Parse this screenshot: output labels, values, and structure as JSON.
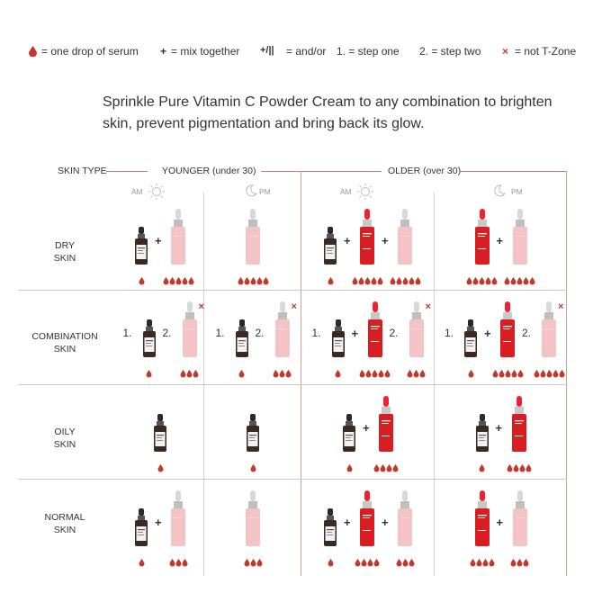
{
  "legend": {
    "drop": "= one drop of serum",
    "plus_symbol": "+",
    "plus": "= mix together",
    "andor_symbol": "+/||",
    "andor": "= and/or",
    "step1": "1. = step one",
    "step2": "2. = step two",
    "x_symbol": "×",
    "xlabel": "= not T-Zone"
  },
  "intro": "Sprinkle Pure  Vitamin C  Powder Cream to any combination to brighten skin, prevent pigmentation and bring back its glow.",
  "header": {
    "skin_type": "SKIN TYPE",
    "younger": "YOUNGER (under 30)",
    "older": "OLDER (over 30)",
    "am": "AM",
    "pm": "PM"
  },
  "rows": [
    {
      "line1": "DRY",
      "line2": "SKIN"
    },
    {
      "line1": "COMBINATION",
      "line2": "SKIN"
    },
    {
      "line1": "OILY",
      "line2": "SKIN"
    },
    {
      "line1": "NORMAL",
      "line2": "SKIN"
    }
  ],
  "steps": {
    "one": "1.",
    "two": "2."
  },
  "colors": {
    "accent": "#c0392b",
    "drop": "#c0392b",
    "pink_bottle": "#f3c3c6",
    "red_bottle": "#d81e22",
    "dark_bottle": "#3b2a22",
    "line": "#b6827c"
  },
  "cells": [
    [
      {
        "items": [
          {
            "kind": "dark",
            "drops": 1
          },
          {
            "op": "+"
          },
          {
            "kind": "pink",
            "drops": 5
          }
        ]
      },
      {
        "items": [
          {
            "kind": "pink",
            "drops": 5
          }
        ]
      },
      {
        "items": [
          {
            "kind": "dark",
            "drops": 1
          },
          {
            "op": "+"
          },
          {
            "kind": "red",
            "drops": 5
          },
          {
            "op": "+"
          },
          {
            "kind": "pink",
            "drops": 5
          }
        ]
      },
      {
        "items": [
          {
            "kind": "red",
            "drops": 5
          },
          {
            "op": "+"
          },
          {
            "kind": "pink",
            "drops": 5
          }
        ]
      }
    ],
    [
      {
        "items": [
          {
            "step": "1."
          },
          {
            "kind": "dark",
            "drops": 1
          },
          {
            "step": "2."
          },
          {
            "kind": "pink",
            "drops": 3,
            "x": true
          }
        ]
      },
      {
        "items": [
          {
            "step": "1."
          },
          {
            "kind": "dark",
            "drops": 1
          },
          {
            "step": "2."
          },
          {
            "kind": "pink",
            "drops": 3,
            "x": true
          }
        ]
      },
      {
        "items": [
          {
            "step": "1."
          },
          {
            "kind": "dark",
            "drops": 1
          },
          {
            "op": "+"
          },
          {
            "kind": "red",
            "drops": 5
          },
          {
            "step": "2."
          },
          {
            "kind": "pink",
            "drops": 3,
            "x": true
          }
        ]
      },
      {
        "items": [
          {
            "step": "1."
          },
          {
            "kind": "dark",
            "drops": 1
          },
          {
            "op": "+"
          },
          {
            "kind": "red",
            "drops": 5
          },
          {
            "step": "2."
          },
          {
            "kind": "pink",
            "drops": 5,
            "x": true
          }
        ]
      }
    ],
    [
      {
        "items": [
          {
            "kind": "dark",
            "drops": 1
          }
        ]
      },
      {
        "items": [
          {
            "kind": "dark",
            "drops": 1
          }
        ]
      },
      {
        "items": [
          {
            "kind": "dark",
            "drops": 1
          },
          {
            "op": "+"
          },
          {
            "kind": "red",
            "drops": 4
          }
        ]
      },
      {
        "items": [
          {
            "kind": "dark",
            "drops": 1
          },
          {
            "op": "+"
          },
          {
            "kind": "red",
            "drops": 4
          }
        ]
      }
    ],
    [
      {
        "items": [
          {
            "kind": "dark",
            "drops": 1
          },
          {
            "op": "+"
          },
          {
            "kind": "pink",
            "drops": 3
          }
        ]
      },
      {
        "items": [
          {
            "kind": "pink",
            "drops": 3
          }
        ]
      },
      {
        "items": [
          {
            "kind": "dark",
            "drops": 1
          },
          {
            "op": "+"
          },
          {
            "kind": "red",
            "drops": 4
          },
          {
            "op": "+"
          },
          {
            "kind": "pink",
            "drops": 3
          }
        ]
      },
      {
        "items": [
          {
            "kind": "red",
            "drops": 4
          },
          {
            "op": "+"
          },
          {
            "kind": "pink",
            "drops": 3
          }
        ]
      }
    ]
  ]
}
